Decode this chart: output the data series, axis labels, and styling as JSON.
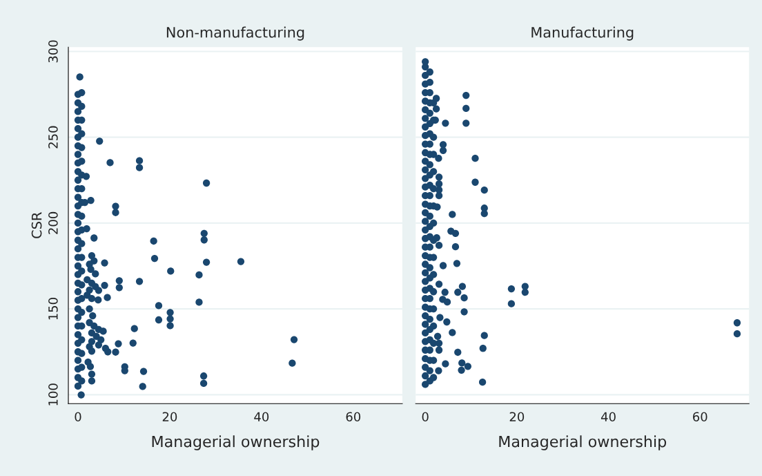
{
  "chart_data": [
    {
      "type": "scatter",
      "title": "Non-manufacturing",
      "xlabel": "Managerial ownership",
      "ylabel": "CSR",
      "color": "#1a476f",
      "marker": "circle",
      "grid": "y",
      "xlim": [
        -2.1,
        70.7
      ],
      "xticks": [
        0,
        20,
        40,
        60
      ],
      "ylim": [
        94.8,
        302.5
      ],
      "yticks": [
        100,
        150,
        200,
        250,
        300
      ],
      "x": [
        0,
        0,
        0,
        0,
        0,
        0,
        0,
        0,
        0,
        0,
        0,
        0,
        0,
        0,
        0,
        0,
        0,
        0,
        0,
        0,
        0,
        0,
        0,
        0,
        0,
        0,
        0,
        0,
        0,
        0,
        0,
        0,
        0,
        0,
        0,
        0.8,
        0.8,
        0.8,
        0.8,
        0.8,
        0.8,
        0.8,
        0.8,
        0.8,
        0.8,
        0.8,
        0.8,
        0.8,
        0.8,
        0.8,
        0.8,
        0.8,
        0.8,
        0.8,
        0.8,
        0.8,
        0.8,
        0.4,
        4.7,
        7.0,
        13.4,
        13.4,
        1.8,
        28.0,
        2.8,
        8.2,
        8.2,
        1.9,
        3.5,
        27.5,
        27.5,
        16.5,
        16.7,
        28.0,
        35.5,
        5.8,
        20.2,
        26.4,
        3.8,
        9.0,
        9.0,
        13.4,
        5.8,
        4.5,
        6.4,
        4.4,
        26.4,
        17.6,
        20.1,
        20.1,
        20.1,
        17.6,
        12.3,
        8.8,
        12.0,
        8.2,
        10.2,
        10.2,
        14.3,
        14.1,
        27.4,
        27.4,
        0.7,
        47.1,
        46.7,
        3.0,
        3.5,
        2.5,
        2.8,
        2.0,
        3.0,
        3.8,
        2.5,
        2.0,
        3.0,
        2.5,
        3.2,
        2.5,
        3.5,
        4.5,
        5.5,
        3.0,
        4.0,
        5.0,
        3.0,
        4.5,
        6.0,
        2.5,
        6.5,
        3.0,
        2.7,
        3.0,
        3.0,
        2.2,
        1.5
      ],
      "values": [
        105,
        110,
        115,
        120,
        125,
        130,
        135,
        140,
        145,
        150,
        155,
        160,
        165,
        170,
        175,
        180,
        185,
        190,
        195,
        200,
        205,
        210,
        215,
        220,
        225,
        230,
        235,
        240,
        245,
        250,
        255,
        260,
        265,
        270,
        275,
        108,
        116,
        124,
        132,
        140,
        148,
        156,
        164,
        172,
        180,
        188,
        196,
        204,
        212,
        220,
        228,
        236,
        244,
        252,
        260,
        268,
        276,
        285.1,
        247.7,
        235.2,
        236.3,
        232.3,
        227.2,
        223.3,
        213.2,
        209.8,
        206.1,
        196.7,
        191.3,
        194.0,
        190.2,
        189.5,
        179.4,
        177.2,
        177.6,
        176.8,
        172.0,
        169.8,
        170.4,
        166.4,
        162.4,
        166.0,
        163.7,
        160.8,
        156.6,
        155.2,
        153.9,
        151.9,
        147.9,
        144.2,
        140.2,
        143.6,
        138.5,
        129.7,
        130.1,
        124.8,
        116.3,
        114.0,
        113.6,
        104.8,
        110.9,
        106.6,
        99.9,
        132.1,
        118.4,
        181,
        178,
        176,
        173,
        167,
        165,
        163,
        161,
        158,
        156,
        150,
        146,
        142,
        140,
        138,
        137,
        136,
        134,
        132,
        131,
        129,
        127,
        128,
        125,
        125.4,
        116.4,
        112,
        108,
        119,
        212
      ]
    },
    {
      "type": "scatter",
      "title": "Manufacturing",
      "xlabel": "Managerial ownership",
      "color": "#1a476f",
      "marker": "circle",
      "grid": "y",
      "tick_labels": "x",
      "xlim": [
        -2.1,
        70.7
      ],
      "xticks": [
        0,
        20,
        40,
        60
      ],
      "ylim": [
        94.8,
        302.5
      ],
      "yticks": [
        100,
        150,
        200,
        250,
        300
      ],
      "x": [
        0,
        0,
        0,
        0,
        0,
        0,
        0,
        0,
        0,
        0,
        0,
        0,
        0,
        0,
        0,
        0,
        0,
        0,
        0,
        0,
        0,
        0,
        0,
        0,
        0,
        0,
        0,
        0,
        0,
        0,
        0,
        0,
        0,
        0,
        0,
        0,
        0,
        0,
        0,
        1,
        1,
        1,
        1,
        1,
        1,
        1,
        1,
        1,
        1,
        1,
        1,
        1,
        1,
        1,
        1,
        1,
        1,
        1,
        1,
        1,
        1,
        1,
        1,
        1,
        1,
        1,
        1,
        1,
        1,
        1,
        1.8,
        1.8,
        1.8,
        1.8,
        1.8,
        1.8,
        1.8,
        1.8,
        1.8,
        1.8,
        1.8,
        1.8,
        1.8,
        1.8,
        1.8,
        1.8,
        1.8,
        8.9,
        8.9,
        8.9,
        2.4,
        2.4,
        4.4,
        2.2,
        3.9,
        3.9,
        10.9,
        2.9,
        3.0,
        3.0,
        3.0,
        3.0,
        10.9,
        12.9,
        12.9,
        12.9,
        2.6,
        5.9,
        5.6,
        6.6,
        2.5,
        3.0,
        6.6,
        6.9,
        3.9,
        3.0,
        8.1,
        7.1,
        8.5,
        4.3,
        3.8,
        4.8,
        8.5,
        3.2,
        4.7,
        5.9,
        12.9,
        12.6,
        2.7,
        3.0,
        3.0,
        7.1,
        4.4,
        8.0,
        9.3,
        7.9,
        2.9,
        12.5,
        18.8,
        18.8,
        21.8,
        21.8,
        68.1,
        68.1
      ],
      "values": [
        106,
        111,
        116,
        121,
        126,
        131,
        136,
        141,
        146,
        151,
        156,
        161,
        166,
        171,
        176,
        181,
        186,
        191,
        196,
        201,
        206,
        211,
        216,
        221,
        226,
        231,
        236,
        241,
        246,
        251,
        256,
        261,
        266,
        271,
        276,
        281,
        286,
        291,
        294,
        108,
        114,
        120,
        126,
        132,
        138,
        144,
        150,
        156,
        162,
        168,
        174,
        180,
        186,
        192,
        198,
        204,
        210,
        216,
        222,
        228,
        234,
        240,
        246,
        252,
        258,
        264,
        270,
        276,
        282,
        288,
        110,
        120,
        130,
        140,
        150,
        160,
        170,
        180,
        190,
        200,
        210,
        220,
        230,
        240,
        250,
        260,
        270,
        274.4,
        266.8,
        258.2,
        272.6,
        266.5,
        258.2,
        260,
        245.7,
        242.3,
        237.7,
        237.7,
        226.8,
        222.8,
        219.3,
        216,
        223.8,
        219.2,
        208.7,
        205.5,
        209.4,
        205.0,
        195.3,
        194.0,
        191.4,
        187,
        186.2,
        176.5,
        175.2,
        164.4,
        163.1,
        159.7,
        156.4,
        159.7,
        155.5,
        154,
        148.3,
        145.0,
        142.4,
        136.2,
        134.5,
        127.0,
        134,
        130,
        126,
        124.7,
        118.0,
        118.5,
        116.5,
        114.3,
        114.0,
        107.3,
        161.7,
        153.0,
        163.1,
        159.7,
        141.9,
        135.5
      ]
    }
  ]
}
